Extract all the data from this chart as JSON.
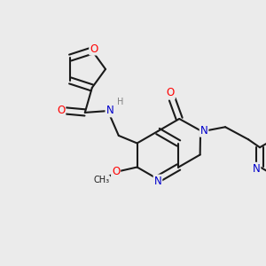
{
  "bg_color": "#ebebeb",
  "bond_color": "#1a1a1a",
  "bond_width": 1.5,
  "dbo": 0.012,
  "atom_colors": {
    "O": "#ff0000",
    "N": "#0000cc",
    "C": "#1a1a1a",
    "H": "#808080"
  },
  "font_size_atom": 8.5,
  "font_size_small": 7.0,
  "figsize": [
    3.0,
    3.0
  ],
  "dpi": 100
}
